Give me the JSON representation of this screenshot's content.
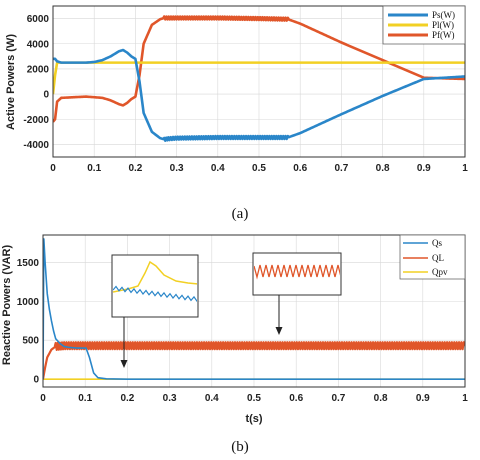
{
  "colors": {
    "blue": "#2a86c9",
    "yellow": "#f2d024",
    "orange": "#e0562a",
    "grid": "#d8d8d8",
    "frame": "#333333"
  },
  "chart_data": [
    {
      "type": "line",
      "caption": "(a)",
      "ylabel": "Active Powers (W)",
      "xlabel": "",
      "xlim": [
        0,
        1
      ],
      "ylim": [
        -5000,
        7000
      ],
      "xticks": [
        0,
        0.1,
        0.2,
        0.3,
        0.4,
        0.5,
        0.6,
        0.7,
        0.8,
        0.9,
        1
      ],
      "xtick_labels": [
        "0",
        "0.1",
        "0.2",
        "0.3",
        "0.4",
        "0.5",
        "0.6",
        "0.7",
        "0.8",
        "0.9",
        "1"
      ],
      "yticks": [
        -4000,
        -2000,
        0,
        2000,
        4000,
        6000
      ],
      "ytick_labels": [
        "-4000",
        "-2000",
        "0",
        "2000",
        "4000",
        "6000"
      ],
      "grid": true,
      "legend_position": "top-right",
      "series": [
        {
          "name": "Ps(W)",
          "color": "#2a86c9",
          "x": [
            0,
            0.005,
            0.01,
            0.02,
            0.03,
            0.05,
            0.08,
            0.1,
            0.12,
            0.14,
            0.16,
            0.17,
            0.18,
            0.19,
            0.2,
            0.21,
            0.22,
            0.24,
            0.26,
            0.27,
            0.28,
            0.3,
            0.4,
            0.5,
            0.57,
            0.6,
            0.7,
            0.8,
            0.9,
            1.0
          ],
          "y": [
            2800,
            2800,
            2600,
            2500,
            2500,
            2500,
            2500,
            2550,
            2700,
            3000,
            3400,
            3500,
            3300,
            3000,
            2800,
            1000,
            -1500,
            -3000,
            -3500,
            -3600,
            -3550,
            -3500,
            -3450,
            -3450,
            -3450,
            -3100,
            -1600,
            -150,
            1200,
            1400
          ]
        },
        {
          "name": "Pl(W)",
          "color": "#f2d024",
          "x": [
            0,
            0.005,
            0.01,
            0.02,
            0.05,
            0.1,
            0.2,
            0.3,
            0.5,
            0.7,
            1.0
          ],
          "y": [
            0,
            1500,
            2500,
            2500,
            2500,
            2500,
            2500,
            2500,
            2500,
            2500,
            2500
          ]
        },
        {
          "name": "Pf(W)",
          "color": "#e0562a",
          "x": [
            0,
            0.005,
            0.01,
            0.02,
            0.05,
            0.08,
            0.1,
            0.12,
            0.14,
            0.16,
            0.17,
            0.18,
            0.19,
            0.2,
            0.21,
            0.22,
            0.24,
            0.26,
            0.27,
            0.3,
            0.4,
            0.5,
            0.57,
            0.6,
            0.7,
            0.8,
            0.9,
            1.0
          ],
          "y": [
            -2200,
            -2000,
            -600,
            -300,
            -250,
            -200,
            -250,
            -300,
            -500,
            -800,
            -900,
            -700,
            -400,
            -200,
            1500,
            4000,
            5500,
            5950,
            6050,
            6050,
            6050,
            6000,
            5950,
            5600,
            4100,
            2700,
            1300,
            1200
          ]
        }
      ]
    },
    {
      "type": "line",
      "caption": "(b)",
      "ylabel": "Reactive Powers (VAR)",
      "xlabel": "t(s)",
      "xlim": [
        0,
        1
      ],
      "ylim": [
        -100,
        1850
      ],
      "xticks": [
        0,
        0.1,
        0.2,
        0.3,
        0.4,
        0.5,
        0.6,
        0.7,
        0.8,
        0.9,
        1
      ],
      "xtick_labels": [
        "0",
        "0.1",
        "0.2",
        "0.3",
        "0.4",
        "0.5",
        "0.6",
        "0.7",
        "0.8",
        "0.9",
        "1"
      ],
      "yticks": [
        0,
        500,
        1000,
        1500
      ],
      "ytick_labels": [
        "0",
        "500",
        "1000",
        "1500"
      ],
      "grid": true,
      "legend_position": "top-right",
      "series": [
        {
          "name": "Qs",
          "color": "#2a86c9",
          "x": [
            0,
            0.002,
            0.005,
            0.01,
            0.015,
            0.02,
            0.025,
            0.03,
            0.04,
            0.05,
            0.06,
            0.08,
            0.1,
            0.102,
            0.11,
            0.12,
            0.13,
            0.15,
            0.2,
            0.4,
            0.6,
            0.8,
            1.0
          ],
          "y": [
            0,
            1800,
            1500,
            1100,
            900,
            750,
            620,
            520,
            460,
            420,
            410,
            400,
            400,
            400,
            280,
            80,
            20,
            5,
            0,
            0,
            0,
            0,
            0
          ]
        },
        {
          "name": "QL",
          "color": "#e0562a",
          "x": [
            0,
            0.005,
            0.01,
            0.02,
            0.03,
            0.05,
            0.1,
            0.3,
            0.5,
            0.7,
            1.0
          ],
          "y": [
            0,
            150,
            280,
            380,
            420,
            430,
            430,
            430,
            430,
            430,
            430
          ]
        },
        {
          "name": "Qpv",
          "color": "#f2d024",
          "x": [
            0,
            0.01,
            0.2,
            0.5,
            1.0
          ],
          "y": [
            0,
            0,
            0,
            0,
            0
          ]
        }
      ]
    }
  ]
}
